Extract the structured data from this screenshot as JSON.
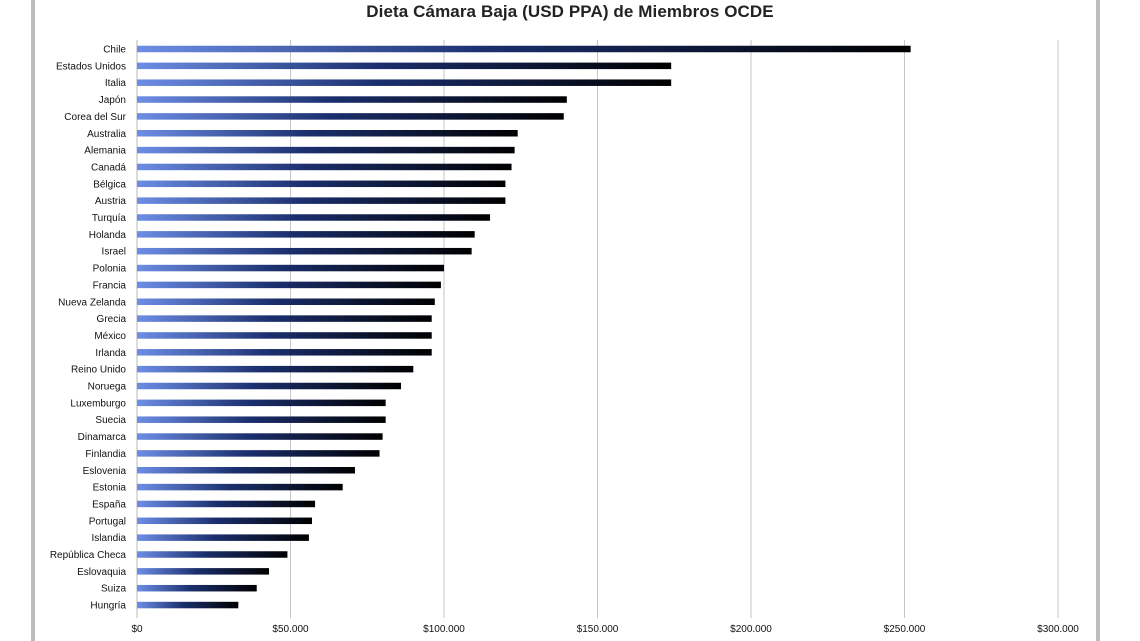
{
  "chart_data": {
    "type": "bar",
    "orientation": "horizontal",
    "title": "Dieta Cámara Baja (USD PPA) de Miembros OCDE",
    "xlabel": "",
    "ylabel": "",
    "xlim": [
      0,
      300000
    ],
    "grid": true,
    "legend": "none",
    "colors": {
      "bar_start": "#6d8ee6",
      "bar_mid": "#1b2f6e",
      "bar_end": "#000000",
      "grid": "#c6c6c6"
    },
    "x_ticks": [
      "$0",
      "$50.000",
      "$100.000",
      "$150.000",
      "$200.000",
      "$250.000",
      "$300.000"
    ],
    "categories": [
      "Chile",
      "Estados Unidos",
      "Italia",
      "Japón",
      "Corea del Sur",
      "Australia",
      "Alemania",
      "Canadá",
      "Bélgica",
      "Austria",
      "Turquía",
      "Holanda",
      "Israel",
      "Polonia",
      "Francia",
      "Nueva Zelanda",
      "Grecia",
      "México",
      "Irlanda",
      "Reino Unido",
      "Noruega",
      "Luxemburgo",
      "Suecia",
      "Dinamarca",
      "Finlandia",
      "Eslovenia",
      "Estonia",
      "España",
      "Portugal",
      "Islandia",
      "República Checa",
      "Eslovaquia",
      "Suiza",
      "Hungría"
    ],
    "values": [
      252000,
      174000,
      174000,
      140000,
      139000,
      124000,
      123000,
      122000,
      120000,
      120000,
      115000,
      110000,
      109000,
      100000,
      99000,
      97000,
      96000,
      96000,
      96000,
      90000,
      86000,
      81000,
      81000,
      80000,
      79000,
      71000,
      67000,
      58000,
      57000,
      56000,
      49000,
      43000,
      39000,
      33000
    ]
  }
}
